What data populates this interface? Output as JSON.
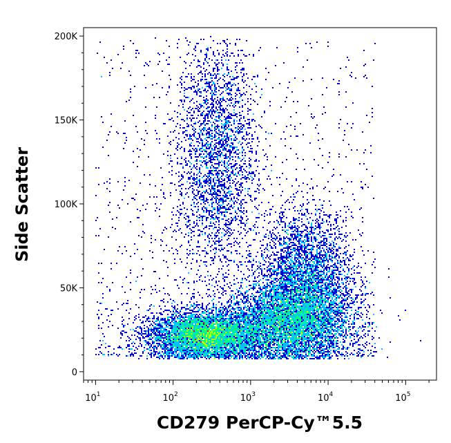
{
  "chart_data": {
    "type": "scatter",
    "subtype": "density-dot-plot",
    "xlabel": "CD279 PerCP-Cy™5.5",
    "ylabel": "Side Scatter",
    "x_scale": "log",
    "xlim": [
      7,
      250000
    ],
    "ylim": [
      -5000,
      205000
    ],
    "x_ticks": [
      {
        "value": 10,
        "base": "10",
        "exp": "1"
      },
      {
        "value": 100,
        "base": "10",
        "exp": "2"
      },
      {
        "value": 1000,
        "base": "10",
        "exp": "3"
      },
      {
        "value": 10000,
        "base": "10",
        "exp": "4"
      },
      {
        "value": 100000,
        "base": "10",
        "exp": "5"
      }
    ],
    "y_ticks": [
      {
        "value": 0,
        "label": "0"
      },
      {
        "value": 50000,
        "label": "50K"
      },
      {
        "value": 100000,
        "label": "100K"
      },
      {
        "value": 150000,
        "label": "150K"
      },
      {
        "value": 200000,
        "label": "200K"
      }
    ],
    "populations": [
      {
        "center_x": 250,
        "center_y": 22000,
        "spread_logx": 0.35,
        "spread_y": 7000,
        "density": "high"
      },
      {
        "center_x": 3000,
        "center_y": 30000,
        "spread_logx": 0.4,
        "spread_y": 12000,
        "density": "high"
      },
      {
        "center_x": 5000,
        "center_y": 55000,
        "spread_logx": 0.3,
        "spread_y": 20000,
        "density": "medium"
      },
      {
        "center_x": 350,
        "center_y": 130000,
        "spread_logx": 0.25,
        "spread_y": 35000,
        "density": "low"
      }
    ],
    "color_scale": [
      "#0000cc",
      "#00c0ff",
      "#00ff80",
      "#c0ff00",
      "#ff0000"
    ],
    "grid": false,
    "legend": "none"
  }
}
